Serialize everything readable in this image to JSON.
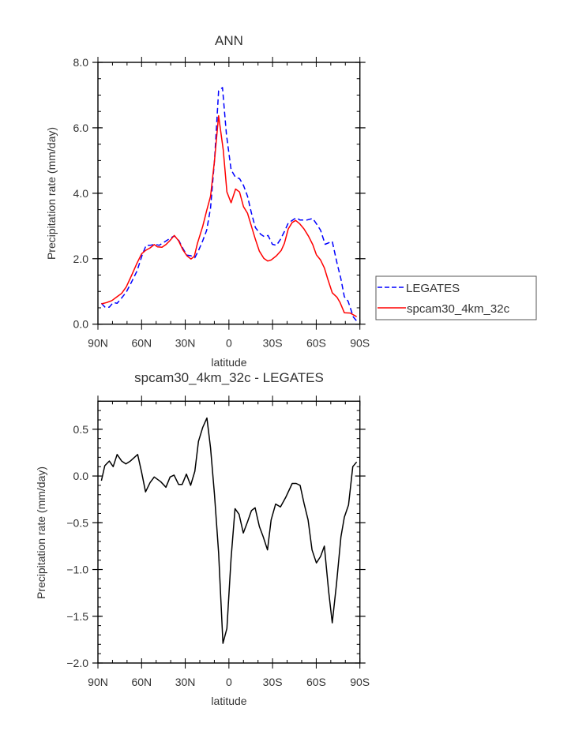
{
  "chart_data": [
    {
      "type": "line",
      "title": "ANN",
      "xlabel": "latitude",
      "ylabel": "Precipitation rate (mm/day)",
      "xlim": [
        90,
        -90
      ],
      "ylim": [
        0,
        8
      ],
      "x_ticks": [
        90,
        60,
        30,
        0,
        -30,
        -60,
        -90
      ],
      "x_tick_labels": [
        "90N",
        "60N",
        "30N",
        "0",
        "30S",
        "60S",
        "90S"
      ],
      "y_ticks": [
        0,
        2,
        4,
        6,
        8
      ],
      "y_tick_labels": [
        "0.0",
        "2.0",
        "4.0",
        "6.0",
        "8.0"
      ],
      "grid": false,
      "legend_position": "right",
      "series": [
        {
          "name": "LEGATES",
          "color": "#0000ff",
          "style": "dashed",
          "x": [
            87.6,
            84.9,
            82.2,
            79.5,
            76.8,
            74.1,
            70.5,
            66.8,
            63.2,
            59.6,
            56.9,
            54.2,
            50.9,
            47.9,
            45.1,
            41.5,
            37.5,
            34.3,
            31.6,
            28.9,
            26.1,
            23.4,
            20.7,
            18.0,
            15.3,
            12.6,
            9.9,
            7.1,
            4.4,
            1.7,
            -1.5,
            -4.6,
            -7.3,
            -10.0,
            -12.8,
            -15.5,
            -18.2,
            -21.8,
            -24.5,
            -26.9,
            -29.9,
            -32.7,
            -35.4,
            -38.1,
            -40.8,
            -43.5,
            -46.2,
            -48.9,
            -53.5,
            -57.6,
            -60.1,
            -63.0,
            -66.1,
            -71.0,
            -74.3,
            -77.0,
            -79.3,
            -81.9,
            -85.5,
            -87.8
          ],
          "y": [
            0.64,
            0.51,
            0.52,
            0.66,
            0.64,
            0.78,
            0.98,
            1.3,
            1.62,
            2.11,
            2.41,
            2.41,
            2.44,
            2.41,
            2.49,
            2.59,
            2.7,
            2.55,
            2.31,
            2.11,
            2.09,
            2.03,
            2.27,
            2.55,
            2.87,
            3.55,
            5.0,
            7.13,
            7.23,
            5.8,
            4.72,
            4.48,
            4.45,
            4.24,
            3.91,
            3.39,
            2.95,
            2.75,
            2.67,
            2.71,
            2.44,
            2.41,
            2.59,
            2.83,
            3.09,
            3.17,
            3.25,
            3.18,
            3.18,
            3.23,
            3.07,
            2.87,
            2.44,
            2.53,
            1.86,
            1.38,
            0.84,
            0.7,
            0.22,
            0.1
          ]
        },
        {
          "name": "spcam30_4km_32c",
          "color": "#ff0000",
          "style": "solid",
          "x": [
            87.6,
            84.0,
            80.4,
            76.8,
            73.7,
            70.5,
            66.8,
            63.2,
            60.0,
            57.4,
            54.2,
            51.3,
            49.1,
            46.0,
            43.3,
            40.6,
            37.5,
            34.6,
            31.6,
            28.9,
            26.1,
            23.8,
            21.6,
            18.0,
            15.3,
            12.6,
            9.9,
            7.1,
            3.9,
            1.4,
            -1.5,
            -4.6,
            -7.3,
            -10.0,
            -12.8,
            -15.5,
            -18.2,
            -20.9,
            -24.0,
            -26.7,
            -29.0,
            -32.7,
            -35.9,
            -38.1,
            -40.8,
            -43.5,
            -45.9,
            -48.6,
            -51.6,
            -54.7,
            -57.6,
            -60.1,
            -63.0,
            -65.6,
            -67.9,
            -71.0,
            -74.3,
            -76.4,
            -79.3,
            -83.3,
            -87.8
          ],
          "y": [
            0.62,
            0.66,
            0.72,
            0.84,
            0.94,
            1.14,
            1.5,
            1.86,
            2.15,
            2.25,
            2.33,
            2.43,
            2.36,
            2.35,
            2.43,
            2.55,
            2.71,
            2.55,
            2.27,
            2.09,
            1.99,
            2.07,
            2.47,
            2.99,
            3.47,
            3.91,
            5.0,
            6.37,
            5.32,
            4.04,
            3.71,
            4.13,
            4.04,
            3.59,
            3.39,
            2.99,
            2.59,
            2.23,
            2.01,
            1.93,
            1.96,
            2.09,
            2.25,
            2.47,
            2.91,
            3.11,
            3.17,
            3.07,
            2.91,
            2.69,
            2.43,
            2.12,
            1.96,
            1.72,
            1.38,
            0.96,
            0.82,
            0.66,
            0.35,
            0.34,
            0.23
          ]
        }
      ]
    },
    {
      "type": "line",
      "title": "spcam30_4km_32c - LEGATES",
      "xlabel": "latitude",
      "ylabel": "Precipitation rate (mm/day)",
      "xlim": [
        90,
        -90
      ],
      "ylim": [
        -2.0,
        0.8
      ],
      "x_ticks": [
        90,
        60,
        30,
        0,
        -30,
        -60,
        -90
      ],
      "x_tick_labels": [
        "90N",
        "60N",
        "30N",
        "0",
        "30S",
        "60S",
        "90S"
      ],
      "y_ticks": [
        -2.0,
        -1.5,
        -1.0,
        -0.5,
        0.0,
        0.5
      ],
      "y_tick_labels": [
        "-2.0",
        "-1.5",
        "-1.0",
        "-0.5",
        "0.0",
        "0.5"
      ],
      "grid": false,
      "series": [
        {
          "name": "spcam30_4km_32c - LEGATES",
          "color": "#000000",
          "style": "solid",
          "x": [
            87.6,
            85.3,
            82.2,
            79.5,
            76.8,
            73.7,
            70.8,
            67.7,
            62.7,
            60.0,
            57.3,
            54.2,
            51.3,
            46.9,
            43.3,
            40.4,
            37.7,
            34.6,
            32.1,
            29.2,
            26.3,
            23.4,
            20.9,
            18.0,
            15.1,
            12.6,
            9.9,
            7.1,
            4.1,
            1.4,
            -1.5,
            -4.2,
            -7.0,
            -9.9,
            -12.8,
            -15.5,
            -18.0,
            -20.9,
            -23.6,
            -26.5,
            -29.0,
            -32.1,
            -35.4,
            -39.0,
            -43.5,
            -46.2,
            -48.9,
            -51.6,
            -54.4,
            -57.1,
            -60.1,
            -63.0,
            -65.6,
            -68.5,
            -71.0,
            -73.9,
            -77.0,
            -79.3,
            -82.2,
            -85.1,
            -87.8
          ],
          "y": [
            -0.05,
            0.11,
            0.16,
            0.1,
            0.23,
            0.16,
            0.13,
            0.16,
            0.23,
            0.04,
            -0.17,
            -0.07,
            -0.01,
            -0.06,
            -0.12,
            -0.01,
            0.01,
            -0.09,
            -0.09,
            0.02,
            -0.1,
            0.05,
            0.37,
            0.52,
            0.62,
            0.3,
            -0.2,
            -0.82,
            -1.79,
            -1.63,
            -0.88,
            -0.35,
            -0.41,
            -0.61,
            -0.49,
            -0.37,
            -0.34,
            -0.54,
            -0.65,
            -0.79,
            -0.47,
            -0.3,
            -0.33,
            -0.23,
            -0.08,
            -0.08,
            -0.1,
            -0.29,
            -0.47,
            -0.79,
            -0.93,
            -0.86,
            -0.75,
            -1.23,
            -1.57,
            -1.16,
            -0.65,
            -0.44,
            -0.31,
            0.1,
            0.15
          ]
        }
      ]
    }
  ]
}
